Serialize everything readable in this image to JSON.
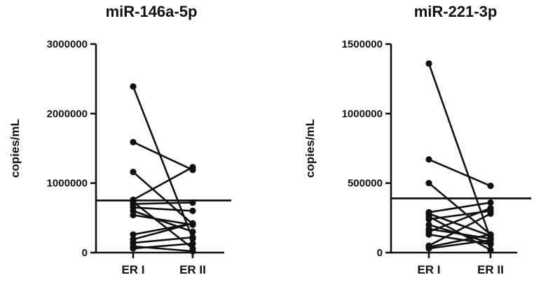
{
  "chart_data": [
    {
      "type": "scatter",
      "title": "miR-146a-5p",
      "xlabel": "",
      "ylabel": "copies/mL",
      "categories": [
        "ER I",
        "ER II"
      ],
      "ylim": [
        0,
        3000000
      ],
      "yticks": [
        "0",
        "1000000",
        "2000000",
        "3000000"
      ],
      "threshold": 750000,
      "grid": false,
      "pairs": [
        [
          2390000,
          200000
        ],
        [
          1590000,
          1190000
        ],
        [
          1160000,
          410000
        ],
        [
          760000,
          1230000
        ],
        [
          730000,
          60000
        ],
        [
          700000,
          720000
        ],
        [
          650000,
          600000
        ],
        [
          600000,
          300000
        ],
        [
          540000,
          400000
        ],
        [
          260000,
          420000
        ],
        [
          190000,
          420000
        ],
        [
          140000,
          220000
        ],
        [
          90000,
          20000
        ],
        [
          60000,
          130000
        ]
      ]
    },
    {
      "type": "scatter",
      "title": "miR-221-3p",
      "xlabel": "",
      "ylabel": "copies/mL",
      "categories": [
        "ER I",
        "ER II"
      ],
      "ylim": [
        0,
        1500000
      ],
      "yticks": [
        "0",
        "500000",
        "1000000",
        "1500000"
      ],
      "threshold": 390000,
      "grid": false,
      "pairs": [
        [
          1360000,
          100000
        ],
        [
          670000,
          480000
        ],
        [
          500000,
          130000
        ],
        [
          290000,
          360000
        ],
        [
          280000,
          120000
        ],
        [
          260000,
          20000
        ],
        [
          240000,
          300000
        ],
        [
          200000,
          70000
        ],
        [
          170000,
          100000
        ],
        [
          150000,
          320000
        ],
        [
          130000,
          60000
        ],
        [
          50000,
          280000
        ],
        [
          40000,
          130000
        ],
        [
          30000,
          90000
        ]
      ]
    }
  ]
}
